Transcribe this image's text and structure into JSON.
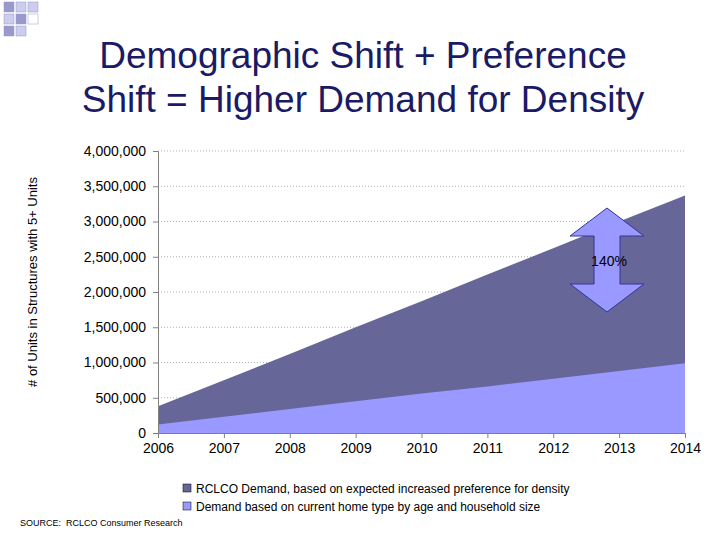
{
  "chart_data": {
    "type": "area",
    "title": "Demographic Shift + Preference\nShift = Higher Demand for Density",
    "y_label": "# of Units in Structures with 5+ Units",
    "x": [
      2006,
      2007,
      2008,
      2009,
      2010,
      2011,
      2012,
      2013,
      2014
    ],
    "series": [
      {
        "name": "RCLCO Demand, based on expected increased preference for density",
        "color": "#666699",
        "values": [
          380000,
          750000,
          1120000,
          1500000,
          1870000,
          2250000,
          2620000,
          3000000,
          3370000
        ]
      },
      {
        "name": "Demand based on current home type by age and household size",
        "color": "#9999ff",
        "values": [
          120000,
          230000,
          340000,
          450000,
          560000,
          660000,
          770000,
          880000,
          990000
        ]
      }
    ],
    "xlim": [
      2006,
      2014
    ],
    "xticks": [
      2006,
      2007,
      2008,
      2009,
      2010,
      2011,
      2012,
      2013,
      2014
    ],
    "ylim": [
      0,
      4000000
    ],
    "yticks": [
      0,
      {
        "value": 500000,
        "label": "500,000"
      },
      {
        "value": 1000000,
        "label": "1,000,000"
      },
      {
        "value": 1500000,
        "label": "1,500,000"
      },
      {
        "value": 2000000,
        "label": "2,000,000"
      },
      {
        "value": 2500000,
        "label": "2,500,000"
      },
      {
        "value": 3000000,
        "label": "3,000,000"
      },
      {
        "value": 3500000,
        "label": "3,500,000"
      },
      {
        "value": 4000000,
        "label": "4,000,000"
      }
    ],
    "grid": true,
    "stacked": false,
    "legend": "bottom",
    "annotations": [
      "140%"
    ],
    "source": "SOURCE:  RCLCO Consumer Research"
  }
}
